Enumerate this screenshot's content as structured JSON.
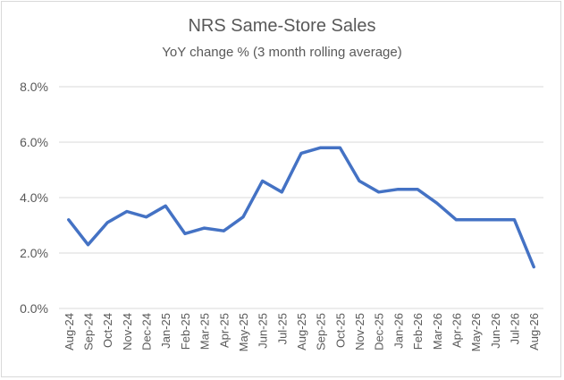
{
  "chart_data": {
    "type": "line",
    "title": "NRS Same-Store Sales",
    "subtitle": "YoY change % (3 month rolling average)",
    "xlabel": "",
    "ylabel": "",
    "ylim": [
      0,
      8
    ],
    "y_ticks": [
      "0.0%",
      "2.0%",
      "4.0%",
      "6.0%",
      "8.0%"
    ],
    "y_tick_values": [
      0,
      2,
      4,
      6,
      8
    ],
    "grid": true,
    "legend": "none",
    "categories": [
      "Aug-24",
      "Sep-24",
      "Oct-24",
      "Nov-24",
      "Dec-24",
      "Jan-25",
      "Feb-25",
      "Mar-25",
      "Apr-25",
      "May-25",
      "Jun-25",
      "Jul-25",
      "Aug-25",
      "Sep-25",
      "Oct-25",
      "Nov-25",
      "Dec-25",
      "Jan-26",
      "Feb-26",
      "Mar-26",
      "Apr-26",
      "May-26",
      "Jun-26",
      "Jul-26",
      "Aug-26"
    ],
    "series": [
      {
        "values": [
          3.2,
          2.3,
          3.1,
          3.5,
          3.3,
          3.7,
          2.7,
          2.9,
          2.8,
          3.3,
          4.6,
          4.2,
          5.6,
          5.8,
          5.8,
          4.6,
          4.2,
          4.3,
          4.3,
          3.8,
          3.2,
          3.2,
          3.2,
          3.2,
          1.5
        ],
        "color": "#4472c4"
      }
    ],
    "gridline_color": "#d9d9d9"
  }
}
